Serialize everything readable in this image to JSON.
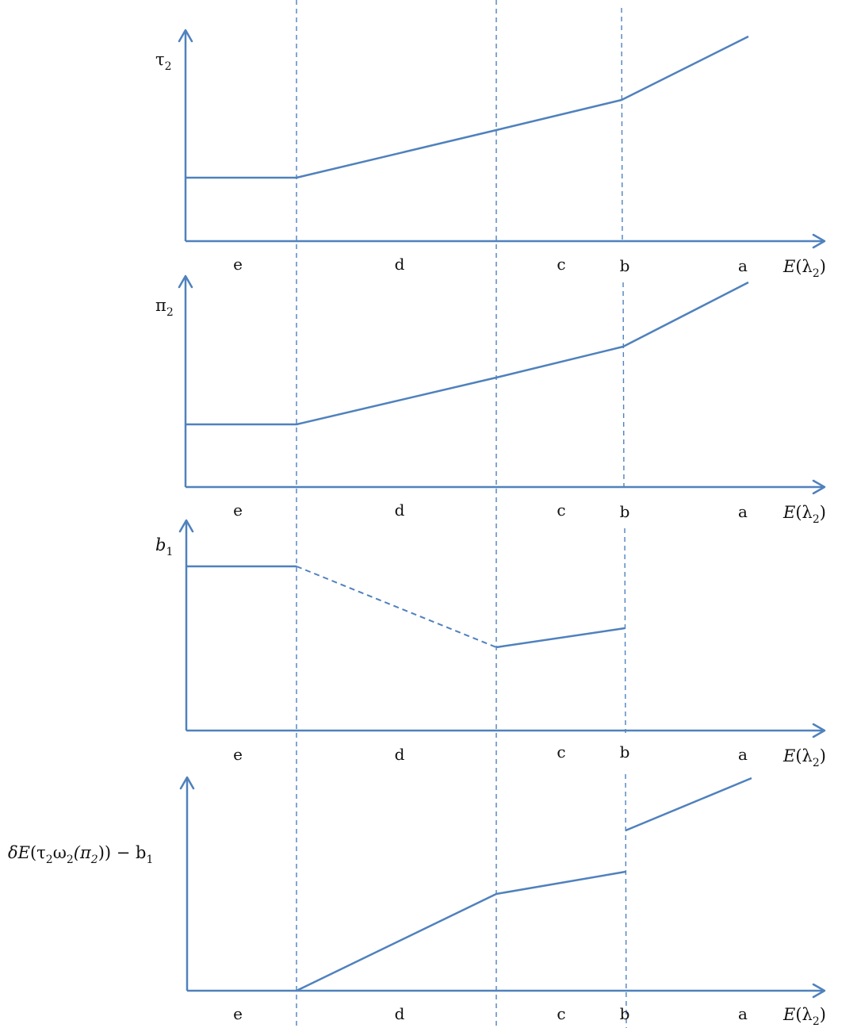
{
  "regions": [
    "e",
    "d",
    "c",
    "b",
    "a"
  ],
  "x_axis_label": {
    "main": "E",
    "open": "(λ",
    "sub": "2",
    "close": ")"
  },
  "panels": [
    {
      "name": "tau2",
      "y_label": {
        "main": "τ",
        "sub": "2"
      }
    },
    {
      "name": "pi2",
      "y_label": {
        "main": "π",
        "sub": "2"
      }
    },
    {
      "name": "b1",
      "y_label": {
        "main": "b",
        "sub": "1"
      }
    },
    {
      "name": "surplus",
      "y_label": {
        "delta": "δE",
        "tau": "(τ",
        "tau_sub": "2",
        "omega": "ω",
        "omega_sub": "2",
        "pi_open": "(π",
        "pi_sub": "2",
        "tail": ")) − b",
        "b_sub": "1"
      }
    }
  ],
  "colors": {
    "line": "#4f81bd",
    "text": "#111111"
  }
}
